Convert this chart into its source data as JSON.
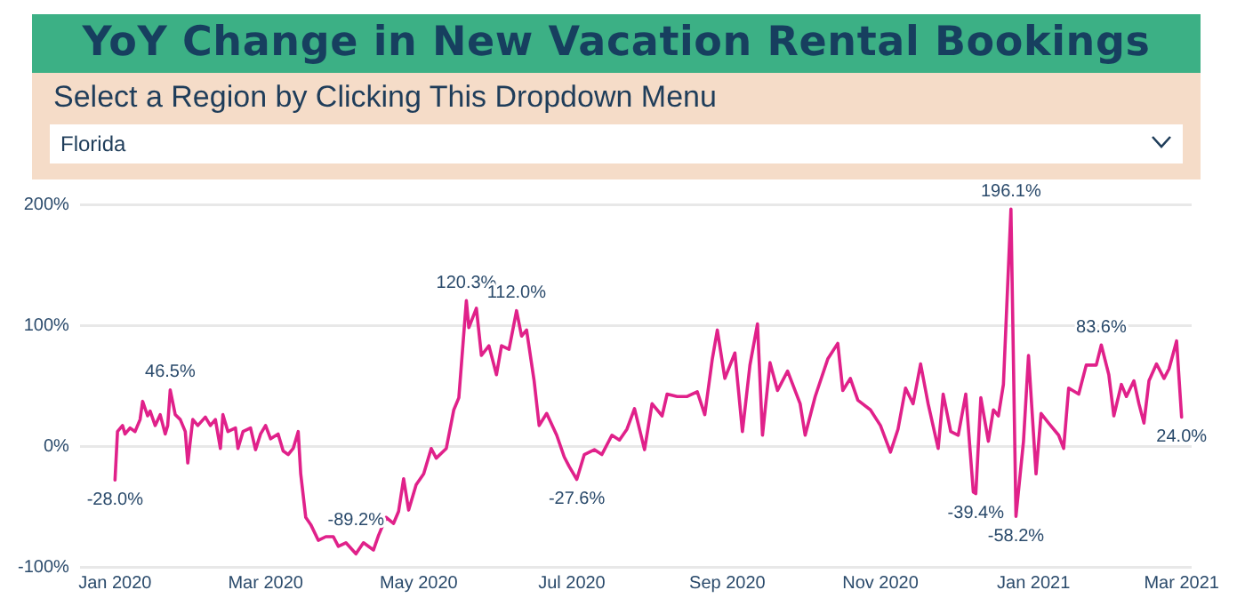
{
  "chart_data": {
    "type": "line",
    "title": "YoY Change in New Vacation Rental Bookings",
    "subtitle": "Select a Region by Clicking This Dropdown Menu",
    "x": [
      "2020-01-01",
      "2020-01-02",
      "2020-01-04",
      "2020-01-05",
      "2020-01-07",
      "2020-01-09",
      "2020-01-11",
      "2020-01-12",
      "2020-01-14",
      "2020-01-15",
      "2020-01-17",
      "2020-01-19",
      "2020-01-21",
      "2020-01-22",
      "2020-01-23",
      "2020-01-25",
      "2020-01-27",
      "2020-01-29",
      "2020-01-30",
      "2020-02-01",
      "2020-02-03",
      "2020-02-06",
      "2020-02-08",
      "2020-02-10",
      "2020-02-12",
      "2020-02-13",
      "2020-02-15",
      "2020-02-18",
      "2020-02-19",
      "2020-02-21",
      "2020-02-24",
      "2020-02-26",
      "2020-02-28",
      "2020-03-01",
      "2020-03-03",
      "2020-03-06",
      "2020-03-08",
      "2020-03-10",
      "2020-03-12",
      "2020-03-14",
      "2020-03-15",
      "2020-03-17",
      "2020-03-19",
      "2020-03-22",
      "2020-03-25",
      "2020-03-28",
      "2020-03-30",
      "2020-04-02",
      "2020-04-06",
      "2020-04-09",
      "2020-04-13",
      "2020-04-15",
      "2020-04-18",
      "2020-04-21",
      "2020-04-23",
      "2020-04-25",
      "2020-04-27",
      "2020-04-30",
      "2020-05-03",
      "2020-05-06",
      "2020-05-08",
      "2020-05-12",
      "2020-05-15",
      "2020-05-17",
      "2020-05-20",
      "2020-05-21",
      "2020-05-24",
      "2020-05-26",
      "2020-05-29",
      "2020-06-01",
      "2020-06-03",
      "2020-06-06",
      "2020-06-09",
      "2020-06-11",
      "2020-06-13",
      "2020-06-16",
      "2020-06-18",
      "2020-06-21",
      "2020-06-25",
      "2020-06-28",
      "2020-06-30",
      "2020-07-03",
      "2020-07-06",
      "2020-07-10",
      "2020-07-13",
      "2020-07-17",
      "2020-07-20",
      "2020-07-23",
      "2020-07-26",
      "2020-07-30",
      "2020-08-02",
      "2020-08-06",
      "2020-08-08",
      "2020-08-12",
      "2020-08-16",
      "2020-08-20",
      "2020-08-23",
      "2020-08-26",
      "2020-08-28",
      "2020-08-31",
      "2020-09-04",
      "2020-09-07",
      "2020-09-10",
      "2020-09-13",
      "2020-09-15",
      "2020-09-18",
      "2020-09-21",
      "2020-09-25",
      "2020-09-30",
      "2020-10-02",
      "2020-10-06",
      "2020-10-11",
      "2020-10-15",
      "2020-10-17",
      "2020-10-20",
      "2020-10-23",
      "2020-10-28",
      "2020-11-01",
      "2020-11-05",
      "2020-11-08",
      "2020-11-11",
      "2020-11-14",
      "2020-11-17",
      "2020-11-20",
      "2020-11-24",
      "2020-11-26",
      "2020-11-29",
      "2020-12-02",
      "2020-12-05",
      "2020-12-08",
      "2020-12-09",
      "2020-12-11",
      "2020-12-14",
      "2020-12-16",
      "2020-12-18",
      "2020-12-20",
      "2020-12-23",
      "2020-12-25",
      "2020-12-28",
      "2020-12-30",
      "2021-01-02",
      "2021-01-04",
      "2021-01-07",
      "2021-01-11",
      "2021-01-13",
      "2021-01-15",
      "2021-01-19",
      "2021-01-22",
      "2021-01-26",
      "2021-01-28",
      "2021-01-31",
      "2021-02-02",
      "2021-02-05",
      "2021-02-07",
      "2021-02-10",
      "2021-02-12",
      "2021-02-14",
      "2021-02-16",
      "2021-02-19",
      "2021-02-22",
      "2021-02-24",
      "2021-02-27",
      "2021-03-01"
    ],
    "series": [
      {
        "color": "#e0218a",
        "values": [
          -28.0,
          12,
          17,
          10,
          15,
          12,
          22,
          37,
          25,
          29,
          17,
          26,
          10,
          17,
          46.5,
          26,
          22,
          12,
          -14,
          22,
          17,
          24,
          17,
          22,
          -2,
          26,
          12,
          15,
          -2,
          12,
          15,
          -3,
          10,
          17,
          6,
          10,
          -4,
          -7,
          -2,
          12,
          -23,
          -59,
          -65,
          -78,
          -75,
          -75,
          -83,
          -80,
          -89.2,
          -80,
          -86,
          -74,
          -59,
          -64,
          -54,
          -27,
          -53,
          -32,
          -23,
          -2,
          -10,
          -2,
          30,
          40,
          120.3,
          98,
          114,
          75,
          83,
          59,
          83,
          80,
          112.0,
          91,
          96,
          54,
          17,
          27,
          9,
          -9,
          -17,
          -27.6,
          -7,
          -3,
          -7,
          9,
          5,
          14,
          31,
          -3,
          35,
          25,
          43,
          41,
          41,
          45,
          26,
          72,
          96,
          56,
          77,
          12,
          67,
          101,
          9,
          69,
          46,
          62,
          35,
          9,
          41,
          72,
          85,
          46,
          56,
          38,
          30,
          17,
          -5,
          14,
          48,
          35,
          68,
          35,
          -2,
          43,
          12,
          9,
          43,
          -38,
          -39.4,
          40,
          4,
          30,
          25,
          51,
          196.1,
          -58.2,
          4,
          75,
          -23,
          27,
          19,
          9,
          -2,
          48,
          43,
          67,
          67,
          83.6,
          59,
          25,
          51,
          41,
          54,
          35,
          19,
          54,
          68,
          56,
          64,
          87,
          24.0
        ]
      }
    ],
    "xlim": [
      "2019-12-18",
      "2021-03-05"
    ],
    "xticks": [
      {
        "value": "2020-01-01",
        "label": "Jan 2020"
      },
      {
        "value": "2020-03-01",
        "label": "Mar 2020"
      },
      {
        "value": "2020-05-01",
        "label": "May 2020"
      },
      {
        "value": "2020-07-01",
        "label": "Jul 2020"
      },
      {
        "value": "2020-09-01",
        "label": "Sep 2020"
      },
      {
        "value": "2020-11-01",
        "label": "Nov 2020"
      },
      {
        "value": "2021-01-01",
        "label": "Jan 2021"
      },
      {
        "value": "2021-03-01",
        "label": "Mar 2021"
      }
    ],
    "ylim": [
      -100,
      200
    ],
    "yticks": [
      {
        "value": -100,
        "label": "-100%"
      },
      {
        "value": 0,
        "label": "0%"
      },
      {
        "value": 100,
        "label": "100%"
      },
      {
        "value": 200,
        "label": "200%"
      }
    ],
    "grid": "y",
    "legend": false,
    "marker": "none",
    "line_style": "solid",
    "annotations": [
      "Florida",
      {
        "text": "-28.0%",
        "x": "2020-01-01",
        "y": -28.0
      },
      {
        "text": "46.5%",
        "x": "2020-01-23",
        "y": 46.5
      },
      {
        "text": "-89.2%",
        "x": "2020-04-06",
        "y": -89.2
      },
      {
        "text": "120.3%",
        "x": "2020-05-20",
        "y": 120.3
      },
      {
        "text": "112.0%",
        "x": "2020-06-09",
        "y": 112.0
      },
      {
        "text": "-27.6%",
        "x": "2020-07-03",
        "y": -27.6
      },
      {
        "text": "-39.4%",
        "x": "2020-12-09",
        "y": -39.4
      },
      {
        "text": "196.1%",
        "x": "2020-12-23",
        "y": 196.1
      },
      {
        "text": "-58.2%",
        "x": "2020-12-25",
        "y": -58.2
      },
      {
        "text": "83.6%",
        "x": "2021-01-28",
        "y": 83.6
      },
      {
        "text": "24.0%",
        "x": "2021-03-01",
        "y": 24.0
      }
    ]
  }
}
